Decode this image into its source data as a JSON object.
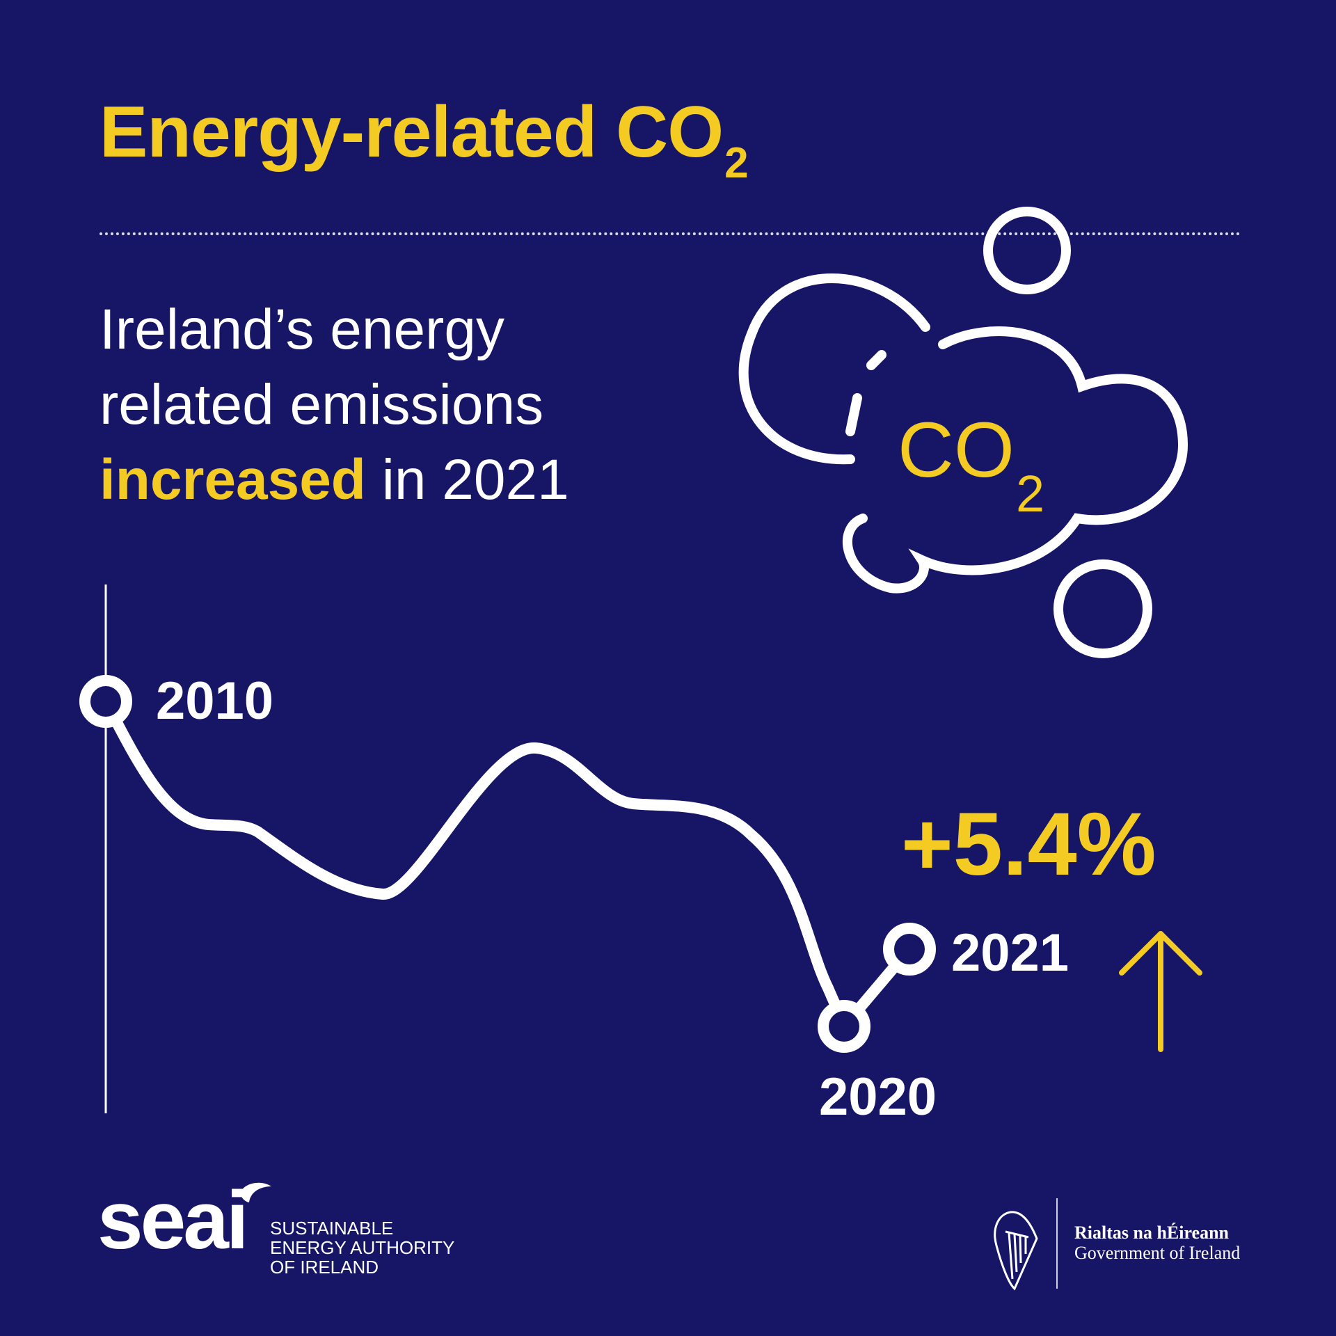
{
  "title": {
    "main": "Energy-related CO",
    "subscript": "2"
  },
  "headline": {
    "line1": "Ireland’s energy",
    "line2": "related emissions",
    "highlight": "increased",
    "line3_rest": " in 2021"
  },
  "icon": {
    "name": "co2-cloud-icon",
    "main": "CO",
    "subscript": "2"
  },
  "chart": {
    "points": [
      {
        "year": "2010"
      },
      {
        "year": "2020"
      },
      {
        "year": "2021"
      }
    ],
    "change": "+5.4%",
    "direction_icon": "up-arrow-icon"
  },
  "footer": {
    "seai_logo": "seai",
    "seai_name_line1": "SUSTAINABLE",
    "seai_name_line2": "ENERGY AUTHORITY",
    "seai_name_line3": "OF IRELAND",
    "gov_irish": "Rialtas na hÉireann",
    "gov_english": "Government of Ireland",
    "gov_icon": "harp-icon"
  },
  "colors": {
    "background": "#161566",
    "accent": "#f4cb22",
    "text": "#ffffff"
  }
}
